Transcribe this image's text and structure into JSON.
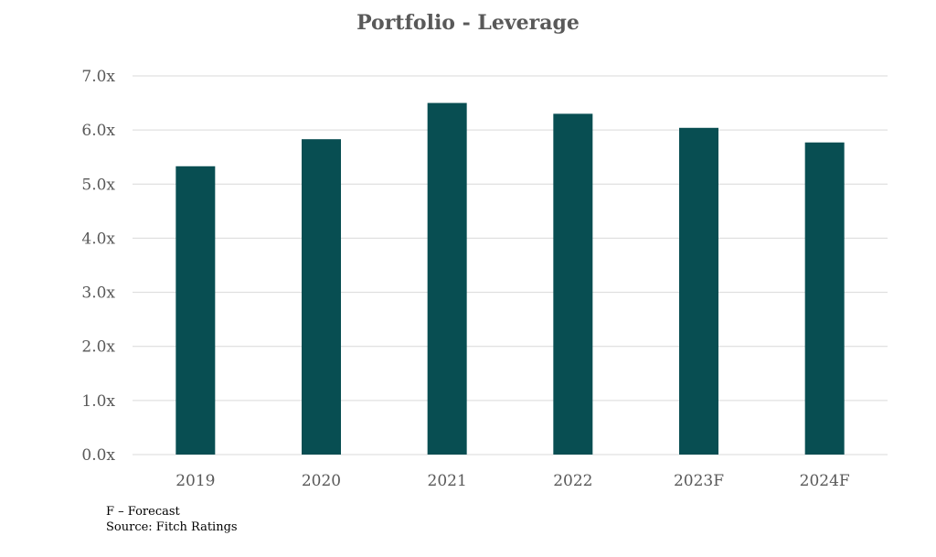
{
  "chart_data": {
    "type": "bar",
    "title": "Portfolio - Leverage",
    "categories": [
      "2019",
      "2020",
      "2021",
      "2022",
      "2023F",
      "2024F"
    ],
    "values": [
      5.33,
      5.83,
      6.5,
      6.3,
      6.04,
      5.77
    ],
    "ylim": [
      0,
      7
    ],
    "yticks": [
      "0.0x",
      "1.0x",
      "2.0x",
      "3.0x",
      "4.0x",
      "5.0x",
      "6.0x",
      "7.0x"
    ],
    "xlabel": "",
    "ylabel": "",
    "grid": true,
    "bar_color": "#084e52",
    "grid_color": "#d9d9d9"
  },
  "notes": {
    "forecast_note": "F – Forecast",
    "source_note": "Source: Fitch Ratings"
  }
}
